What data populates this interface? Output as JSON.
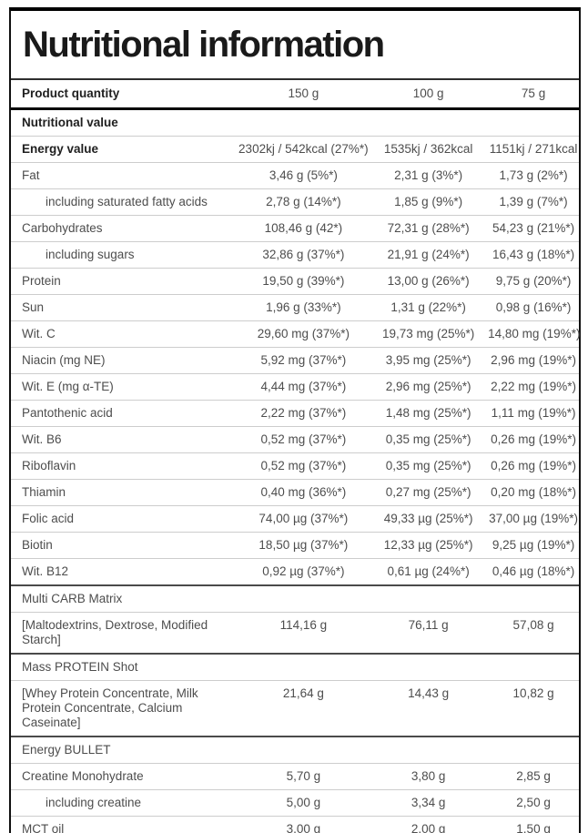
{
  "title": "Nutritional information",
  "accent_colors": {
    "border_black": "#000000",
    "separator_gray": "#cdcdcd",
    "text_dark": "#1f1f1f",
    "text_gray": "#4d4d4d"
  },
  "table": {
    "header": {
      "label": "Product quantity",
      "values": [
        "150 g",
        "100 g",
        "75 g"
      ]
    },
    "rows": [
      {
        "type": "section",
        "label": "Nutritional value",
        "bold": true,
        "divider": "strong"
      },
      {
        "type": "data",
        "label": "Energy value",
        "bold": true,
        "values": [
          "2302kj / 542kcal (27%*)",
          "1535kj / 362kcal",
          "1151kj / 271kcal"
        ]
      },
      {
        "type": "data",
        "label": "Fat",
        "values": [
          "3,46 g (5%*)",
          "2,31 g (3%*)",
          "1,73 g (2%*)"
        ]
      },
      {
        "type": "data",
        "label": "including saturated fatty acids",
        "indent": true,
        "values": [
          "2,78 g (14%*)",
          "1,85 g (9%*)",
          "1,39 g (7%*)"
        ]
      },
      {
        "type": "data",
        "label": "Carbohydrates",
        "values": [
          "108,46 g (42*)",
          "72,31 g (28%*)",
          "54,23 g (21%*)"
        ]
      },
      {
        "type": "data",
        "label": "including sugars",
        "indent": true,
        "values": [
          "32,86 g (37%*)",
          "21,91 g (24%*)",
          "16,43 g (18%*)"
        ]
      },
      {
        "type": "data",
        "label": "Protein",
        "values": [
          "19,50 g (39%*)",
          "13,00 g (26%*)",
          "9,75 g (20%*)"
        ]
      },
      {
        "type": "data",
        "label": "Sun",
        "values": [
          "1,96 g (33%*)",
          "1,31 g (22%*)",
          "0,98 g (16%*)"
        ]
      },
      {
        "type": "data",
        "label": "Wit. C",
        "values": [
          "29,60 mg (37%*)",
          "19,73 mg (25%*)",
          "14,80 mg (19%*)"
        ]
      },
      {
        "type": "data",
        "label": "Niacin (mg NE)",
        "values": [
          "5,92 mg (37%*)",
          "3,95 mg (25%*)",
          "2,96 mg (19%*)"
        ]
      },
      {
        "type": "data",
        "label": "Wit. E (mg α-TE)",
        "values": [
          "4,44 mg (37%*)",
          "2,96 mg (25%*)",
          "2,22 mg (19%*)"
        ]
      },
      {
        "type": "data",
        "label": "Pantothenic acid",
        "values": [
          "2,22 mg (37%*)",
          "1,48 mg (25%*)",
          "1,11 mg (19%*)"
        ]
      },
      {
        "type": "data",
        "label": "Wit. B6",
        "values": [
          "0,52 mg (37%*)",
          "0,35 mg (25%*)",
          "0,26 mg (19%*)"
        ]
      },
      {
        "type": "data",
        "label": "Riboflavin",
        "values": [
          "0,52 mg (37%*)",
          "0,35 mg (25%*)",
          "0,26 mg (19%*)"
        ]
      },
      {
        "type": "data",
        "label": "Thiamin",
        "values": [
          "0,40 mg (36%*)",
          "0,27 mg (25%*)",
          "0,20 mg (18%*)"
        ]
      },
      {
        "type": "data",
        "label": "Folic acid",
        "values": [
          "74,00 µg (37%*)",
          "49,33 µg (25%*)",
          "37,00 µg (19%*)"
        ]
      },
      {
        "type": "data",
        "label": "Biotin",
        "values": [
          "18,50 µg (37%*)",
          "12,33 µg (25%*)",
          "9,25 µg (19%*)"
        ]
      },
      {
        "type": "data",
        "label": "Wit. B12",
        "values": [
          "0,92 µg (37%*)",
          "0,61 µg (24%*)",
          "0,46 µg (18%*)"
        ]
      },
      {
        "type": "section",
        "label": "Multi CARB Matrix",
        "divider": "medium"
      },
      {
        "type": "data",
        "label": "[Maltodextrins, Dextrose, Modified Starch]",
        "values": [
          "114,16 g",
          "76,11 g",
          "57,08 g"
        ]
      },
      {
        "type": "section",
        "label": "Mass PROTEIN Shot",
        "divider": "medium"
      },
      {
        "type": "data",
        "label": "[Whey Protein Concentrate, Milk Protein Concentrate, Calcium Caseinate]",
        "values": [
          "21,64 g",
          "14,43 g",
          "10,82 g"
        ]
      },
      {
        "type": "section",
        "label": "Energy BULLET",
        "divider": "medium"
      },
      {
        "type": "data",
        "label": "Creatine Monohydrate",
        "values": [
          "5,70 g",
          "3,80 g",
          "2,85 g"
        ]
      },
      {
        "type": "data",
        "label": "including creatine",
        "indent": true,
        "values": [
          "5,00 g",
          "3,34 g",
          "2,50 g"
        ]
      },
      {
        "type": "data",
        "label": "MCT oil",
        "values": [
          "3,00 g",
          "2,00 g",
          "1,50 g"
        ]
      }
    ]
  }
}
